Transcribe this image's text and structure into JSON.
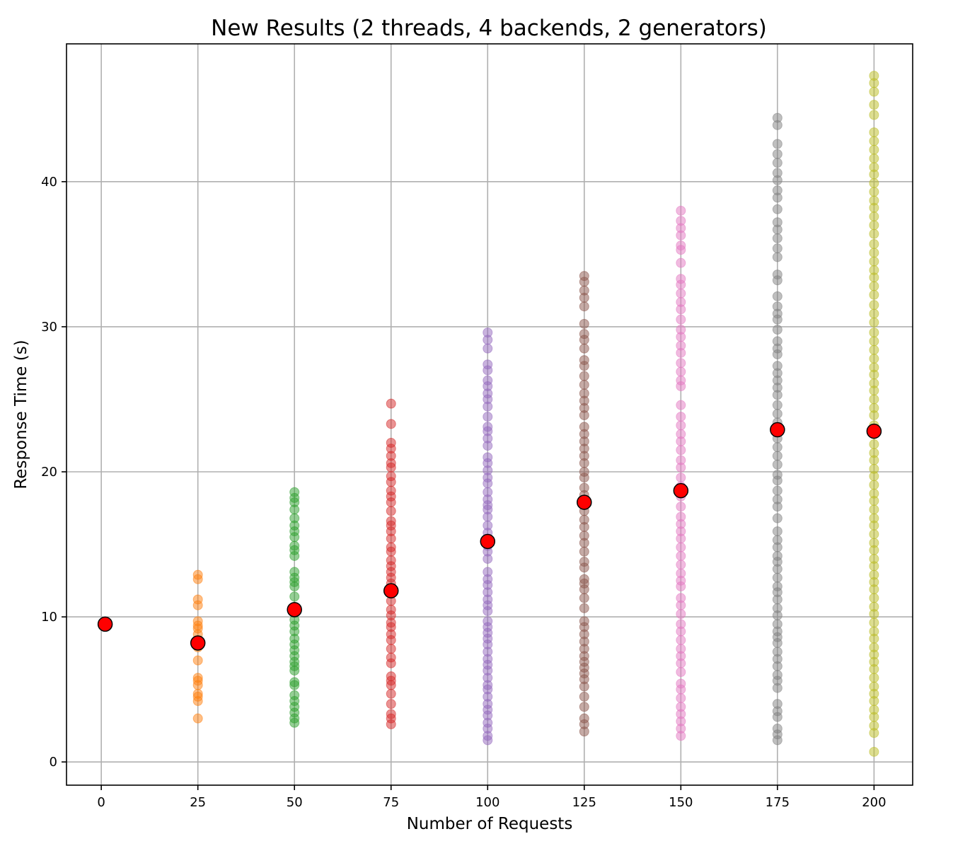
{
  "chart_data": {
    "type": "scatter",
    "title": "New Results (2 threads, 4 backends, 2 generators)",
    "xlabel": "Number of Requests",
    "ylabel": "Response Time (s)",
    "xlim": [
      -9,
      210
    ],
    "ylim": [
      -1.6,
      49.5
    ],
    "xticks": [
      0,
      25,
      50,
      75,
      100,
      125,
      150,
      175,
      200
    ],
    "yticks": [
      0,
      10,
      20,
      30,
      40
    ],
    "grid": true,
    "series": [
      {
        "x": 25,
        "color": "#ff7f0e",
        "values": [
          3.0,
          4.2,
          4.5,
          4.7,
          5.3,
          5.6,
          5.8,
          7.0,
          7.9,
          8.3,
          8.8,
          9.2,
          9.4,
          9.7,
          10.8,
          11.2,
          12.6,
          12.9
        ]
      },
      {
        "x": 50,
        "color": "#2ca02c",
        "values": [
          2.7,
          3.0,
          3.4,
          3.8,
          4.2,
          4.6,
          5.3,
          5.5,
          6.3,
          6.6,
          6.9,
          7.3,
          7.7,
          8.1,
          8.5,
          9.0,
          9.4,
          9.8,
          10.3,
          10.7,
          11.4,
          12.1,
          12.4,
          12.7,
          13.1,
          14.2,
          14.6,
          14.9,
          15.5,
          15.9,
          16.3,
          16.8,
          17.4,
          17.9,
          18.2,
          18.6
        ]
      },
      {
        "x": 75,
        "color": "#d62728",
        "values": [
          2.6,
          3.0,
          3.3,
          4.0,
          4.7,
          5.3,
          5.6,
          5.9,
          6.8,
          7.2,
          7.8,
          8.4,
          8.8,
          9.3,
          9.6,
          10.1,
          10.5,
          11.1,
          11.6,
          12.3,
          12.7,
          13.1,
          13.5,
          13.9,
          14.5,
          14.8,
          15.4,
          15.9,
          16.3,
          16.6,
          17.3,
          17.9,
          18.3,
          18.7,
          19.3,
          19.7,
          20.3,
          20.6,
          21.1,
          21.6,
          22.0,
          23.3,
          24.7
        ]
      },
      {
        "x": 100,
        "color": "#9467bd",
        "values": [
          1.5,
          1.8,
          2.3,
          2.7,
          3.2,
          3.6,
          4.0,
          4.5,
          5.0,
          5.3,
          5.8,
          6.3,
          6.7,
          7.1,
          7.6,
          8.1,
          8.5,
          8.9,
          9.3,
          9.7,
          10.4,
          10.8,
          11.2,
          11.7,
          12.2,
          12.6,
          13.1,
          14.0,
          14.5,
          14.9,
          15.4,
          15.8,
          16.3,
          16.9,
          17.4,
          17.7,
          18.1,
          18.6,
          19.2,
          19.6,
          20.1,
          20.6,
          21.0,
          21.8,
          22.3,
          22.8,
          23.1,
          23.8,
          24.5,
          25.0,
          25.4,
          25.9,
          26.3,
          27.0,
          27.4,
          28.5,
          29.1,
          29.6
        ]
      },
      {
        "x": 125,
        "color": "#8c564b",
        "values": [
          2.1,
          2.6,
          3.0,
          3.8,
          4.5,
          5.2,
          5.7,
          6.1,
          6.5,
          6.9,
          7.3,
          7.8,
          8.3,
          8.8,
          9.3,
          9.7,
          10.6,
          11.3,
          11.9,
          12.3,
          12.6,
          13.4,
          13.8,
          14.5,
          15.1,
          15.6,
          16.2,
          16.7,
          17.3,
          17.8,
          18.4,
          18.9,
          19.6,
          20.0,
          20.6,
          21.1,
          21.6,
          22.1,
          22.6,
          23.1,
          23.9,
          24.4,
          24.9,
          25.4,
          26.0,
          26.6,
          27.3,
          27.7,
          28.5,
          29.1,
          29.5,
          30.2,
          31.4,
          32.0,
          32.5,
          33.1,
          33.5
        ]
      },
      {
        "x": 150,
        "color": "#e377c2",
        "values": [
          1.8,
          2.3,
          2.8,
          3.3,
          3.8,
          4.4,
          5.0,
          5.4,
          6.2,
          6.8,
          7.3,
          7.8,
          8.4,
          9.0,
          9.5,
          10.2,
          10.8,
          11.3,
          12.1,
          12.5,
          13.0,
          13.6,
          14.2,
          14.8,
          15.4,
          15.9,
          16.4,
          16.9,
          17.6,
          18.3,
          19.0,
          19.6,
          20.3,
          20.8,
          21.5,
          22.1,
          22.6,
          23.2,
          23.8,
          24.6,
          25.9,
          26.3,
          26.9,
          27.5,
          28.2,
          28.7,
          29.3,
          29.8,
          30.5,
          31.2,
          31.7,
          32.3,
          32.9,
          33.3,
          34.4,
          35.3,
          35.6,
          36.3,
          36.8,
          37.3,
          38.0
        ]
      },
      {
        "x": 175,
        "color": "#7f7f7f",
        "values": [
          1.5,
          1.9,
          2.3,
          3.1,
          3.5,
          4.0,
          5.1,
          5.6,
          6.0,
          6.6,
          7.1,
          7.6,
          8.2,
          8.6,
          9.0,
          9.5,
          10.1,
          10.6,
          11.2,
          11.7,
          12.1,
          12.7,
          13.3,
          13.8,
          14.2,
          14.8,
          15.3,
          15.9,
          16.8,
          17.6,
          18.1,
          18.7,
          19.4,
          19.8,
          20.5,
          21.1,
          21.7,
          22.3,
          23.4,
          24.0,
          24.6,
          25.3,
          25.8,
          26.3,
          26.8,
          27.3,
          28.1,
          28.5,
          29.0,
          29.8,
          30.5,
          30.9,
          31.4,
          32.1,
          33.2,
          33.6,
          34.8,
          35.4,
          36.1,
          36.7,
          37.2,
          38.1,
          38.9,
          39.4,
          40.1,
          40.6,
          41.3,
          41.9,
          42.6,
          43.9,
          44.4
        ]
      },
      {
        "x": 200,
        "color": "#bcbd22",
        "values": [
          0.7,
          2.0,
          2.5,
          3.1,
          3.6,
          4.2,
          4.7,
          5.2,
          5.8,
          6.4,
          6.9,
          7.4,
          7.9,
          8.5,
          9.0,
          9.6,
          10.2,
          10.7,
          11.3,
          11.9,
          12.4,
          12.9,
          13.5,
          14.0,
          14.6,
          15.1,
          15.7,
          16.3,
          16.8,
          17.4,
          18.0,
          18.5,
          19.1,
          19.7,
          20.2,
          20.8,
          21.3,
          21.9,
          22.6,
          23.2,
          23.9,
          24.4,
          25.0,
          25.6,
          26.1,
          26.7,
          27.2,
          27.8,
          28.4,
          29.0,
          29.6,
          30.3,
          30.9,
          31.5,
          32.2,
          32.8,
          33.4,
          33.9,
          34.5,
          35.1,
          35.7,
          36.4,
          37.0,
          37.6,
          38.2,
          38.7,
          39.3,
          39.9,
          40.5,
          41.0,
          41.6,
          42.2,
          42.8,
          43.4,
          44.6,
          45.3,
          46.2,
          46.8,
          47.3
        ]
      }
    ],
    "means": {
      "color": "#ff0000",
      "x": [
        1,
        25,
        50,
        75,
        100,
        125,
        150,
        175,
        200
      ],
      "y": [
        9.5,
        8.2,
        10.5,
        11.8,
        15.2,
        17.9,
        18.7,
        22.9,
        22.8
      ]
    }
  }
}
